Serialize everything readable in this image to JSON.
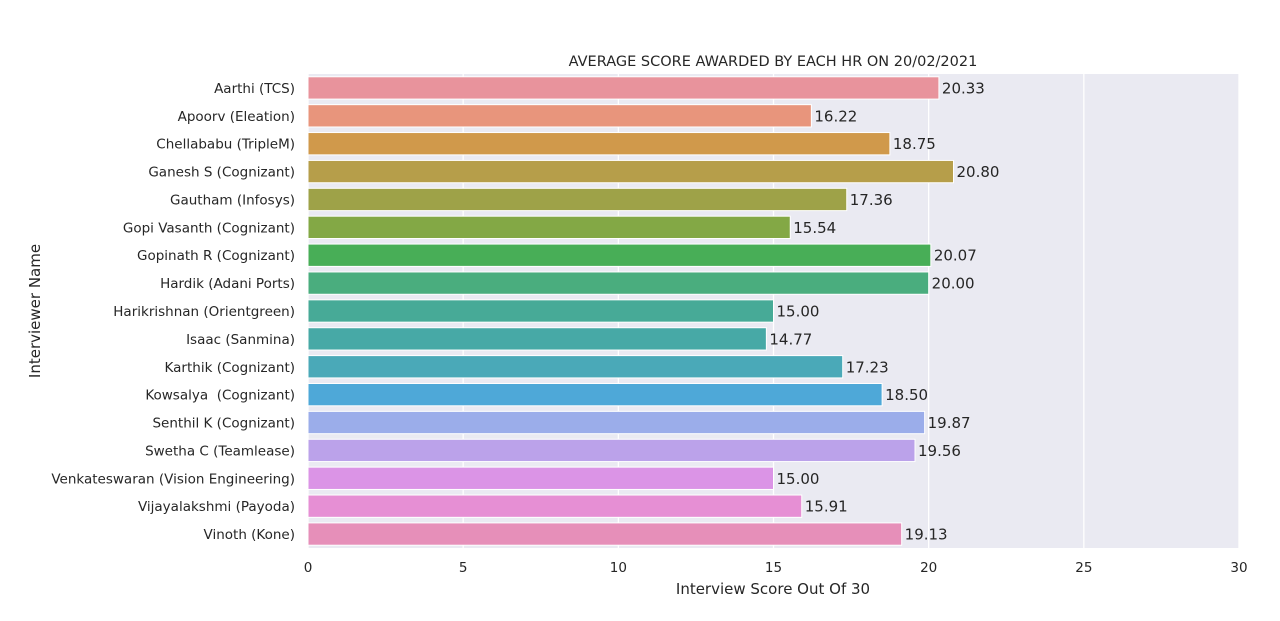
{
  "chart_data": {
    "type": "bar",
    "orientation": "horizontal",
    "title": "AVERAGE SCORE AWARDED BY EACH HR ON 20/02/2021",
    "xlabel": "Interview Score Out Of 30",
    "ylabel": "Interviewer Name",
    "xlim": [
      0,
      30
    ],
    "xticks": [
      0,
      5,
      10,
      15,
      20,
      25,
      30
    ],
    "grid": true,
    "background": "#eaeaf2",
    "categories": [
      "Aarthi (TCS)",
      "Apoorv (Eleation)",
      "Chellababu (TripleM)",
      "Ganesh S (Cognizant)",
      "Gautham (Infosys)",
      "Gopi Vasanth (Cognizant)",
      "Gopinath R (Cognizant)",
      "Hardik (Adani Ports)",
      "Harikrishnan (Orientgreen)",
      "Isaac (Sanmina)",
      "Karthik (Cognizant)",
      "Kowsalya  (Cognizant)",
      "Senthil K (Cognizant)",
      "Swetha C (Teamlease)",
      "Venkateswaran (Vision Engineering)",
      "Vijayalakshmi (Payoda)",
      "Vinoth (Kone)"
    ],
    "values": [
      20.33,
      16.22,
      18.75,
      20.8,
      17.36,
      15.54,
      20.07,
      20.0,
      15.0,
      14.77,
      17.23,
      18.5,
      19.87,
      19.56,
      15.0,
      15.91,
      19.13
    ],
    "value_labels": [
      "20.33",
      "16.22",
      "18.75",
      "20.80",
      "17.36",
      "15.54",
      "20.07",
      "20.00",
      "15.00",
      "14.77",
      "17.23",
      "18.50",
      "19.87",
      "19.56",
      "15.00",
      "15.91",
      "19.13"
    ],
    "colors": [
      "#e8939c",
      "#e8957c",
      "#d0994b",
      "#b69e4a",
      "#9ea248",
      "#83a845",
      "#48ae57",
      "#4aad7e",
      "#47aa97",
      "#47a9a6",
      "#4aa9b8",
      "#4ea8d8",
      "#9badea",
      "#bba2ea",
      "#db94e6",
      "#e68fd4",
      "#e68fb9"
    ]
  }
}
